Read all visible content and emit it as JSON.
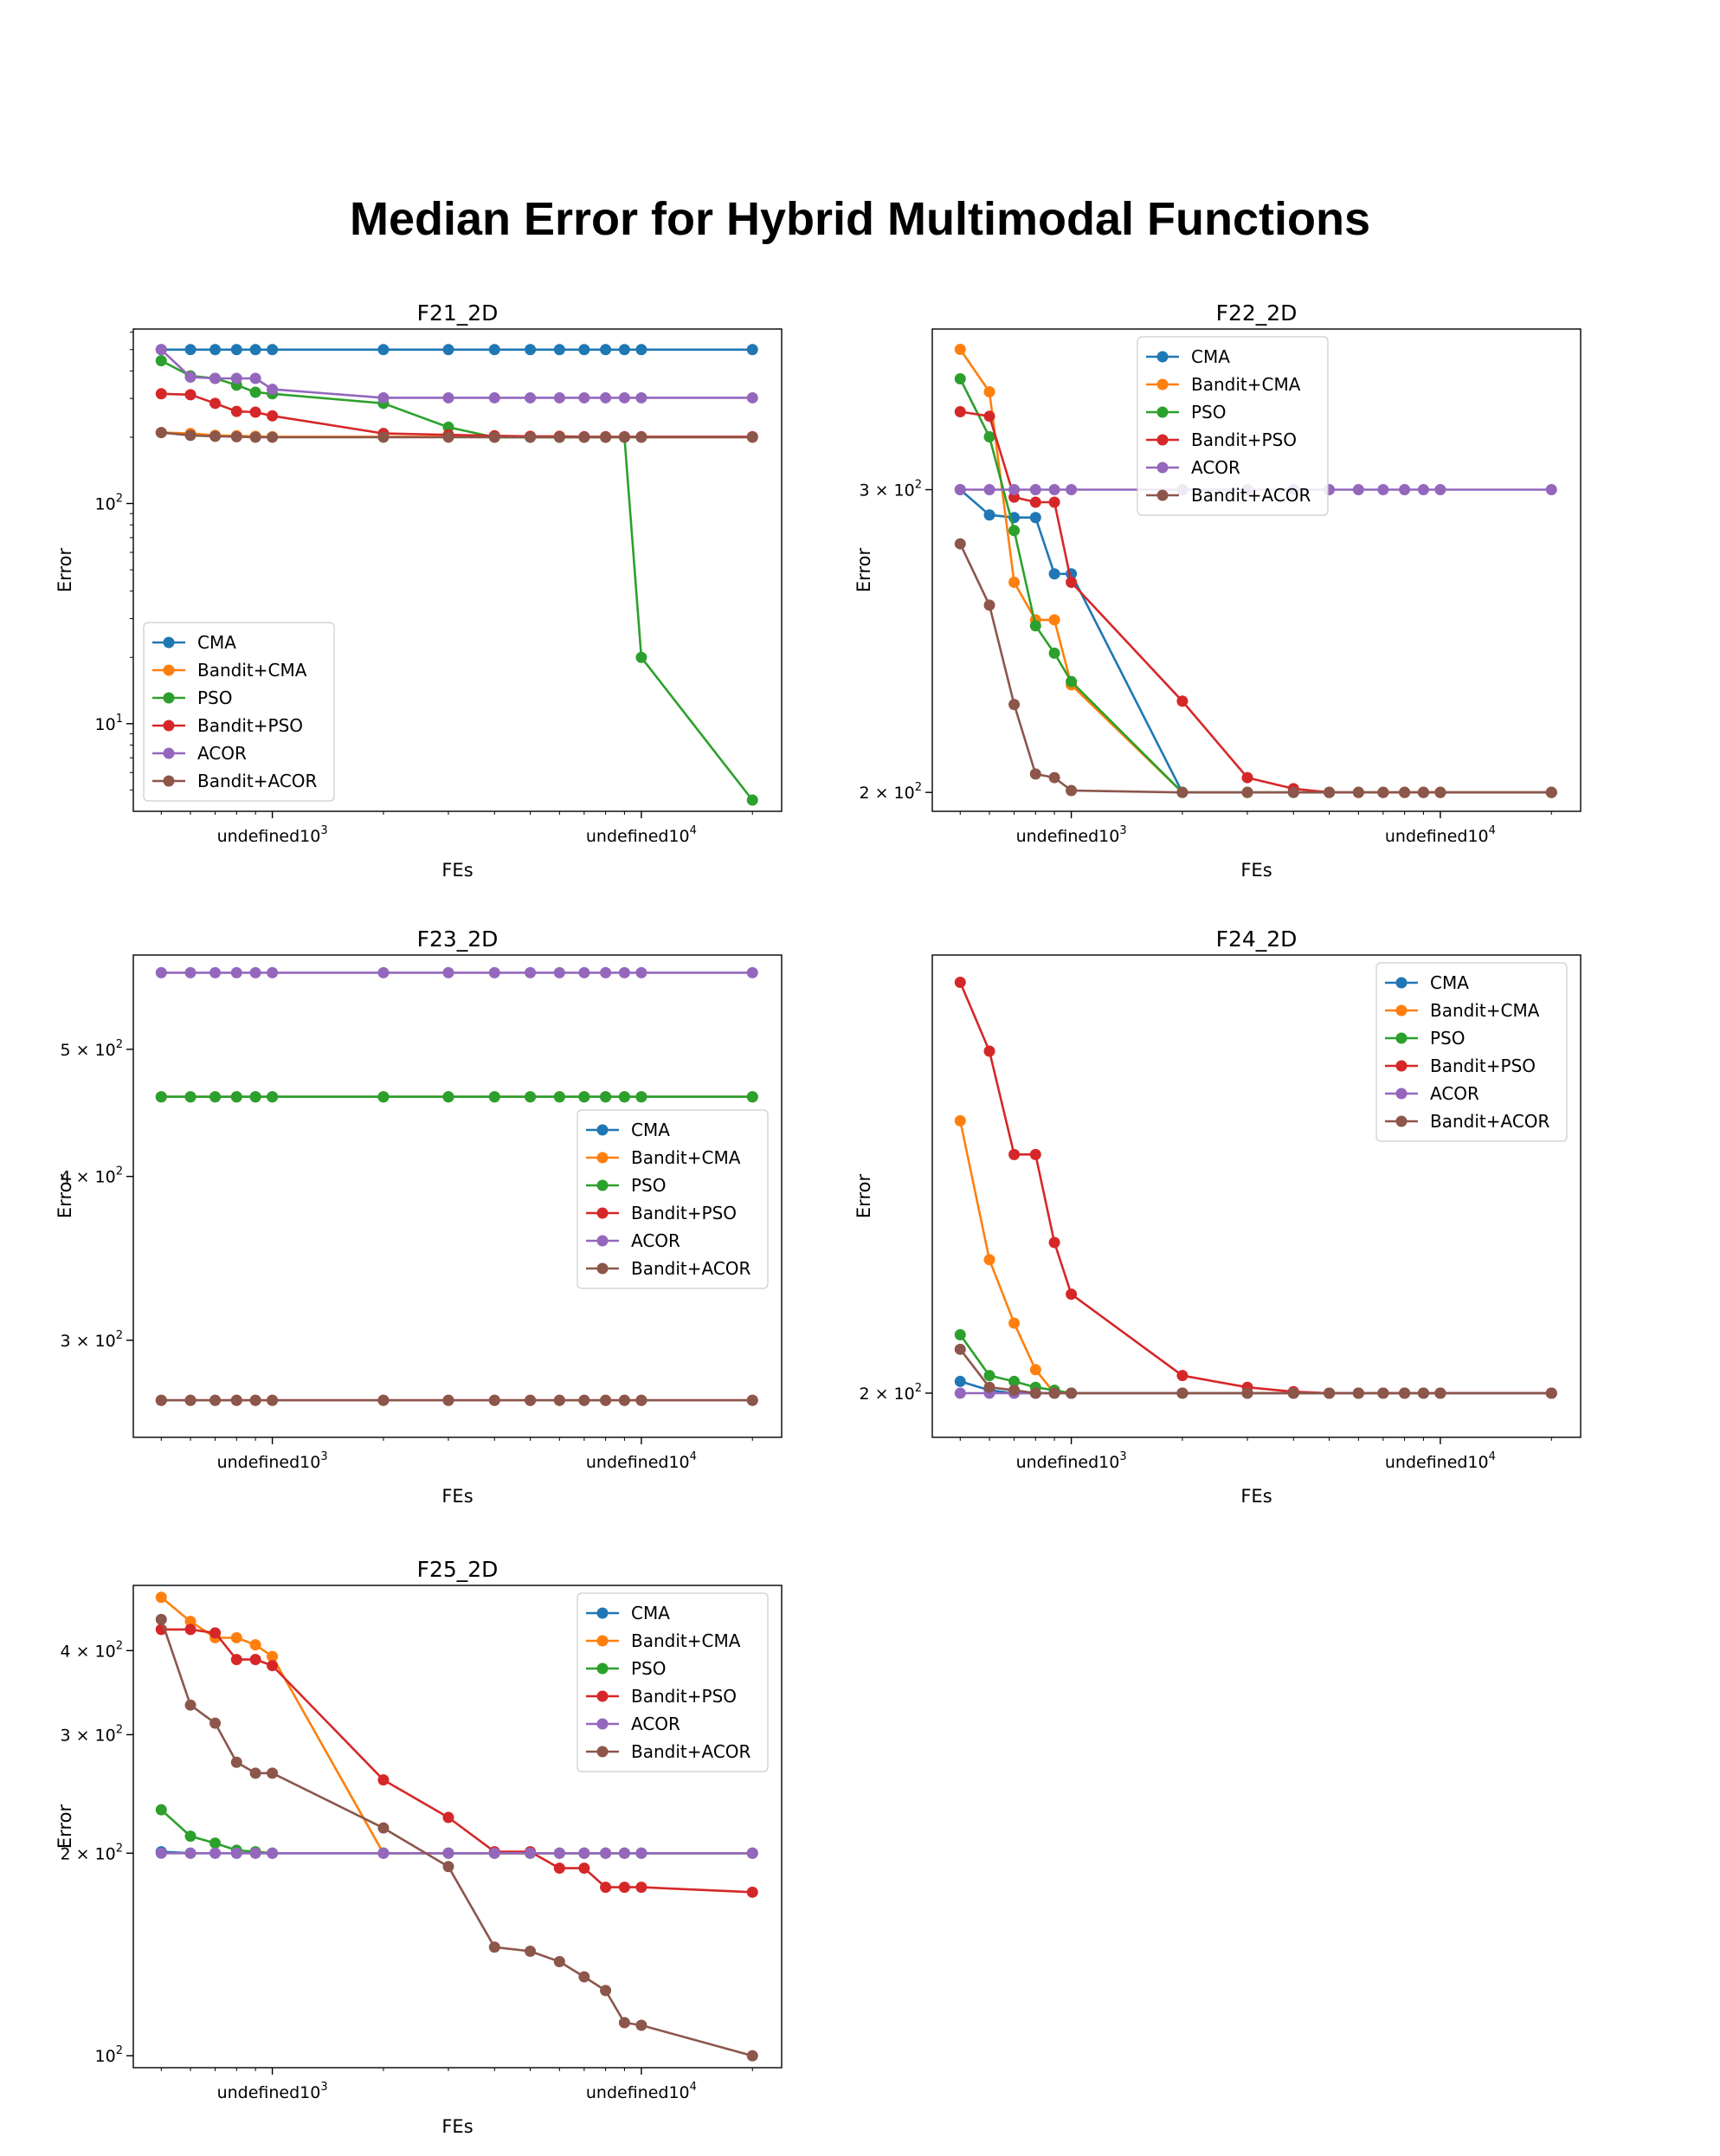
{
  "figure_title": "Median Error for Hybrid Multimodal Functions",
  "colors": {
    "CMA": "#1f77b4",
    "Bandit+CMA": "#ff7f0e",
    "PSO": "#2ca02c",
    "Bandit+PSO": "#d62728",
    "ACOR": "#9467bd",
    "Bandit+ACOR": "#8c564b"
  },
  "chart_data": [
    {
      "type": "line",
      "title": "F21_2D",
      "xlabel": "FEs",
      "ylabel": "Error",
      "xscale": "log",
      "yscale": "log",
      "xlim": [
        420,
        24000
      ],
      "ylim": [
        4.0,
        620
      ],
      "xticks": [
        {
          "v": 1000,
          "b": "10",
          "e": "3"
        },
        {
          "v": 10000,
          "b": "10",
          "e": "4"
        }
      ],
      "yticks": [
        {
          "v": 10,
          "c": "",
          "b": "10",
          "e": "1"
        },
        {
          "v": 100,
          "c": "",
          "b": "10",
          "e": "2"
        }
      ],
      "legend": "lower-left",
      "x": [
        500,
        600,
        700,
        800,
        900,
        1000,
        2000,
        3000,
        4000,
        5000,
        6000,
        7000,
        8000,
        9000,
        10000,
        20000
      ],
      "series": [
        {
          "name": "CMA",
          "values": [
            500,
            500,
            500,
            500,
            500,
            500,
            500,
            500,
            500,
            500,
            500,
            500,
            500,
            500,
            500,
            500
          ]
        },
        {
          "name": "Bandit+CMA",
          "values": [
            210,
            208,
            204,
            203,
            202,
            201,
            201,
            201,
            200,
            200,
            200,
            200,
            200,
            200,
            200,
            200
          ]
        },
        {
          "name": "PSO",
          "values": [
            445,
            380,
            370,
            345,
            320,
            315,
            285,
            222,
            200,
            200,
            200,
            200,
            200,
            200,
            20,
            4.5
          ]
        },
        {
          "name": "Bandit+PSO",
          "values": [
            315,
            312,
            285,
            262,
            260,
            250,
            208,
            205,
            203,
            202,
            202,
            201,
            201,
            201,
            201,
            201
          ]
        },
        {
          "name": "ACOR",
          "values": [
            500,
            375,
            370,
            370,
            370,
            330,
            302,
            302,
            302,
            302,
            302,
            302,
            302,
            302,
            302,
            302
          ]
        },
        {
          "name": "Bandit+ACOR",
          "values": [
            210,
            204,
            202,
            201,
            200,
            200,
            200,
            200,
            200,
            200,
            200,
            200,
            200,
            200,
            200,
            200
          ]
        }
      ]
    },
    {
      "type": "line",
      "title": "F22_2D",
      "xlabel": "FEs",
      "ylabel": "Error",
      "xscale": "log",
      "yscale": "log",
      "xlim": [
        420,
        24000
      ],
      "ylim": [
        195,
        372
      ],
      "xticks": [
        {
          "v": 1000,
          "b": "10",
          "e": "3"
        },
        {
          "v": 10000,
          "b": "10",
          "e": "4"
        }
      ],
      "yticks": [
        {
          "v": 200,
          "c": "2 × ",
          "b": "10",
          "e": "2"
        },
        {
          "v": 300,
          "c": "3 × ",
          "b": "10",
          "e": "2"
        }
      ],
      "legend": "upper-center",
      "x": [
        500,
        600,
        700,
        800,
        900,
        1000,
        2000,
        3000,
        4000,
        5000,
        6000,
        7000,
        8000,
        9000,
        10000,
        20000
      ],
      "series": [
        {
          "name": "CMA",
          "values": [
            300,
            290,
            289,
            289,
            268,
            268,
            200,
            200,
            200,
            200,
            200,
            200,
            200,
            200,
            200,
            200
          ]
        },
        {
          "name": "Bandit+CMA",
          "values": [
            362,
            342,
            265,
            252,
            252,
            231,
            200,
            200,
            200,
            200,
            200,
            200,
            200,
            200,
            200,
            200
          ]
        },
        {
          "name": "PSO",
          "values": [
            348,
            322,
            284,
            250,
            241,
            232,
            200,
            200,
            200,
            200,
            200,
            200,
            200,
            200,
            200,
            200
          ]
        },
        {
          "name": "Bandit+PSO",
          "values": [
            333,
            331,
            297,
            295,
            295,
            265,
            226,
            204,
            201,
            200,
            200,
            200,
            200,
            200,
            200,
            200
          ]
        },
        {
          "name": "ACOR",
          "values": [
            300,
            300,
            300,
            300,
            300,
            300,
            300,
            300,
            300,
            300,
            300,
            300,
            300,
            300,
            300,
            300
          ]
        },
        {
          "name": "Bandit+ACOR",
          "values": [
            279,
            257,
            225,
            205,
            204,
            200.5,
            200,
            200,
            200,
            200,
            200,
            200,
            200,
            200,
            200,
            200
          ]
        }
      ]
    },
    {
      "type": "line",
      "title": "F23_2D",
      "xlabel": "FEs",
      "ylabel": "Error",
      "xscale": "log",
      "yscale": "log",
      "xlim": [
        420,
        24000
      ],
      "ylim": [
        253,
        590
      ],
      "xticks": [
        {
          "v": 1000,
          "b": "10",
          "e": "3"
        },
        {
          "v": 10000,
          "b": "10",
          "e": "4"
        }
      ],
      "yticks": [
        {
          "v": 300,
          "c": "3 × ",
          "b": "10",
          "e": "2"
        },
        {
          "v": 400,
          "c": "4 × ",
          "b": "10",
          "e": "2"
        },
        {
          "v": 500,
          "c": "5 × ",
          "b": "10",
          "e": "2"
        }
      ],
      "legend": "center-right",
      "x": [
        500,
        600,
        700,
        800,
        900,
        1000,
        2000,
        3000,
        4000,
        5000,
        6000,
        7000,
        8000,
        9000,
        10000,
        20000
      ],
      "series": [
        {
          "name": "CMA",
          "values": [
            460,
            460,
            460,
            460,
            460,
            460,
            460,
            460,
            460,
            460,
            460,
            460,
            460,
            460,
            460,
            460
          ]
        },
        {
          "name": "Bandit+CMA",
          "values": [
            460,
            460,
            460,
            460,
            460,
            460,
            460,
            460,
            460,
            460,
            460,
            460,
            460,
            460,
            460,
            460
          ]
        },
        {
          "name": "PSO",
          "values": [
            460,
            460,
            460,
            460,
            460,
            460,
            460,
            460,
            460,
            460,
            460,
            460,
            460,
            460,
            460,
            460
          ]
        },
        {
          "name": "Bandit+PSO",
          "values": [
            270,
            270,
            270,
            270,
            270,
            270,
            270,
            270,
            270,
            270,
            270,
            270,
            270,
            270,
            270,
            270
          ]
        },
        {
          "name": "ACOR",
          "values": [
            572,
            572,
            572,
            572,
            572,
            572,
            572,
            572,
            572,
            572,
            572,
            572,
            572,
            572,
            572,
            572
          ]
        },
        {
          "name": "Bandit+ACOR",
          "values": [
            270,
            270,
            270,
            270,
            270,
            270,
            270,
            270,
            270,
            270,
            270,
            270,
            270,
            270,
            270,
            270
          ]
        }
      ]
    },
    {
      "type": "line",
      "title": "F24_2D",
      "xlabel": "FEs",
      "ylabel": "Error",
      "xscale": "log",
      "yscale": "log",
      "xlim": [
        420,
        24000
      ],
      "ylim": [
        198.5,
        215.5
      ],
      "xticks": [
        {
          "v": 1000,
          "b": "10",
          "e": "3"
        },
        {
          "v": 10000,
          "b": "10",
          "e": "4"
        }
      ],
      "yticks": [
        {
          "v": 200,
          "c": "2 × ",
          "b": "10",
          "e": "2"
        }
      ],
      "legend": "upper-right",
      "x": [
        500,
        600,
        700,
        800,
        900,
        1000,
        2000,
        3000,
        4000,
        5000,
        6000,
        7000,
        8000,
        9000,
        10000,
        20000
      ],
      "series": [
        {
          "name": "CMA",
          "values": [
            200.4,
            200.1,
            200,
            200,
            200,
            200,
            200,
            200,
            200,
            200,
            200,
            200,
            200,
            200,
            200,
            200
          ]
        },
        {
          "name": "Bandit+CMA",
          "values": [
            209.5,
            204.6,
            202.4,
            200.8,
            200,
            200,
            200,
            200,
            200,
            200,
            200,
            200,
            200,
            200,
            200,
            200
          ]
        },
        {
          "name": "PSO",
          "values": [
            202.0,
            200.6,
            200.4,
            200.2,
            200.1,
            200,
            200,
            200,
            200,
            200,
            200,
            200,
            200,
            200,
            200,
            200
          ]
        },
        {
          "name": "Bandit+PSO",
          "values": [
            214.5,
            212.0,
            208.3,
            208.3,
            205.2,
            203.4,
            200.6,
            200.2,
            200.05,
            200,
            200,
            200,
            200,
            200,
            200,
            200
          ]
        },
        {
          "name": "ACOR",
          "values": [
            200,
            200,
            200,
            200,
            200,
            200,
            200,
            200,
            200,
            200,
            200,
            200,
            200,
            200,
            200,
            200
          ]
        },
        {
          "name": "Bandit+ACOR",
          "values": [
            201.5,
            200.2,
            200.1,
            200,
            200,
            200,
            200,
            200,
            200,
            200,
            200,
            200,
            200,
            200,
            200,
            200
          ]
        }
      ]
    },
    {
      "type": "line",
      "title": "F25_2D",
      "xlabel": "FEs",
      "ylabel": "Error",
      "xscale": "log",
      "yscale": "log",
      "xlim": [
        420,
        24000
      ],
      "ylim": [
        96,
        500
      ],
      "xticks": [
        {
          "v": 1000,
          "b": "10",
          "e": "3"
        },
        {
          "v": 10000,
          "b": "10",
          "e": "4"
        }
      ],
      "yticks": [
        {
          "v": 100,
          "c": "",
          "b": "10",
          "e": "2"
        },
        {
          "v": 200,
          "c": "2 × ",
          "b": "10",
          "e": "2"
        },
        {
          "v": 300,
          "c": "3 × ",
          "b": "10",
          "e": "2"
        },
        {
          "v": 400,
          "c": "4 × ",
          "b": "10",
          "e": "2"
        }
      ],
      "legend": "upper-right",
      "x": [
        500,
        600,
        700,
        800,
        900,
        1000,
        2000,
        3000,
        4000,
        5000,
        6000,
        7000,
        8000,
        9000,
        10000,
        20000
      ],
      "series": [
        {
          "name": "CMA",
          "values": [
            201,
            200,
            200,
            200,
            200,
            200,
            200,
            200,
            200,
            200,
            200,
            200,
            200,
            200,
            200,
            200
          ]
        },
        {
          "name": "Bandit+CMA",
          "values": [
            480,
            442,
            418,
            418,
            408,
            392,
            200,
            200,
            200,
            200,
            200,
            200,
            200,
            200,
            200,
            200
          ]
        },
        {
          "name": "PSO",
          "values": [
            232,
            212,
            207,
            202,
            201,
            200,
            200,
            200,
            200,
            200,
            200,
            200,
            200,
            200,
            200,
            200
          ]
        },
        {
          "name": "Bandit+PSO",
          "values": [
            430,
            430,
            425,
            388,
            388,
            380,
            257,
            226,
            201,
            201,
            190,
            190,
            178,
            178,
            178,
            175
          ]
        },
        {
          "name": "ACOR",
          "values": [
            200,
            200,
            200,
            200,
            200,
            200,
            200,
            200,
            200,
            200,
            200,
            200,
            200,
            200,
            200,
            200
          ]
        },
        {
          "name": "Bandit+ACOR",
          "values": [
            445,
            332,
            312,
            273,
            263,
            263,
            218,
            191,
            145,
            143,
            138,
            131,
            125,
            112,
            111,
            100
          ]
        }
      ]
    }
  ]
}
